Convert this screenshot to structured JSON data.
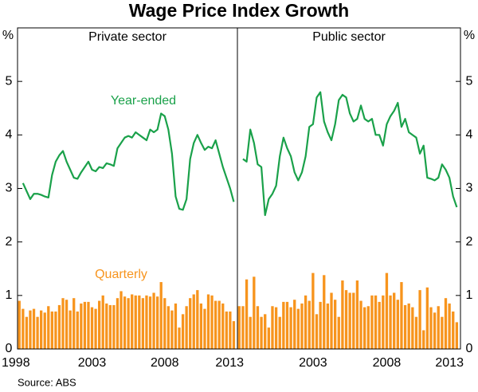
{
  "title": "Wage Price Index Growth",
  "source": "Source: ABS",
  "chart_data": [
    {
      "type": "combo",
      "subtitle": "Private sector",
      "y_unit": "%",
      "x": [
        1998,
        1998.25,
        1998.5,
        1998.75,
        1999,
        1999.25,
        1999.5,
        1999.75,
        2000,
        2000.25,
        2000.5,
        2000.75,
        2001,
        2001.25,
        2001.5,
        2001.75,
        2002,
        2002.25,
        2002.5,
        2002.75,
        2003,
        2003.25,
        2003.5,
        2003.75,
        2004,
        2004.25,
        2004.5,
        2004.75,
        2005,
        2005.25,
        2005.5,
        2005.75,
        2006,
        2006.25,
        2006.5,
        2006.75,
        2007,
        2007.25,
        2007.5,
        2007.75,
        2008,
        2008.25,
        2008.5,
        2008.75,
        2009,
        2009.25,
        2009.5,
        2009.75,
        2010,
        2010.25,
        2010.5,
        2010.75,
        2011,
        2011.25,
        2011.5,
        2011.75,
        2012,
        2012.25,
        2012.5,
        2012.75
      ],
      "xlim": [
        1997.875,
        2013
      ],
      "xticks": [
        1998,
        2003,
        2008,
        2013
      ],
      "ylim": [
        0,
        6
      ],
      "yticks": [
        0,
        1,
        2,
        3,
        4,
        5
      ],
      "series": [
        {
          "name": "Year-ended",
          "type": "line",
          "color": "#1aa14a",
          "values": [
            null,
            3.1,
            2.95,
            2.8,
            2.9,
            2.9,
            2.88,
            2.85,
            2.83,
            3.25,
            3.5,
            3.62,
            3.7,
            3.5,
            3.35,
            3.2,
            3.18,
            3.3,
            3.4,
            3.5,
            3.35,
            3.32,
            3.4,
            3.38,
            3.47,
            3.45,
            3.42,
            3.75,
            3.85,
            3.95,
            3.98,
            3.95,
            4.05,
            4.0,
            3.95,
            3.9,
            4.1,
            4.05,
            4.1,
            4.4,
            4.35,
            4.1,
            3.65,
            2.85,
            2.62,
            2.6,
            2.8,
            3.55,
            3.85,
            4.0,
            3.85,
            3.72,
            3.78,
            3.75,
            3.9,
            3.65,
            3.4,
            3.2,
            3.0,
            2.75
          ]
        },
        {
          "name": "Quarterly",
          "type": "bar",
          "color": "#f7941d",
          "values": [
            0.9,
            0.75,
            0.6,
            0.72,
            0.75,
            0.6,
            0.72,
            0.68,
            0.8,
            0.7,
            0.7,
            0.82,
            0.95,
            0.92,
            0.72,
            0.95,
            0.7,
            0.85,
            0.88,
            0.88,
            0.78,
            0.75,
            0.9,
            1.0,
            0.85,
            0.82,
            0.82,
            0.95,
            1.08,
            0.98,
            0.95,
            1.02,
            1.0,
            1.0,
            0.95,
            1.0,
            0.98,
            1.05,
            0.98,
            1.25,
            0.95,
            0.8,
            0.72,
            0.85,
            0.4,
            0.65,
            0.8,
            0.95,
            1.02,
            1.1,
            0.85,
            0.75,
            1.02,
            1.0,
            0.9,
            0.9,
            0.85,
            0.7,
            0.7,
            0.52
          ]
        }
      ]
    },
    {
      "type": "combo",
      "subtitle": "Public sector",
      "y_unit": "%",
      "x": [
        1998,
        1998.25,
        1998.5,
        1998.75,
        1999,
        1999.25,
        1999.5,
        1999.75,
        2000,
        2000.25,
        2000.5,
        2000.75,
        2001,
        2001.25,
        2001.5,
        2001.75,
        2002,
        2002.25,
        2002.5,
        2002.75,
        2003,
        2003.25,
        2003.5,
        2003.75,
        2004,
        2004.25,
        2004.5,
        2004.75,
        2005,
        2005.25,
        2005.5,
        2005.75,
        2006,
        2006.25,
        2006.5,
        2006.75,
        2007,
        2007.25,
        2007.5,
        2007.75,
        2008,
        2008.25,
        2008.5,
        2008.75,
        2009,
        2009.25,
        2009.5,
        2009.75,
        2010,
        2010.25,
        2010.5,
        2010.75,
        2011,
        2011.25,
        2011.5,
        2011.75,
        2012,
        2012.25,
        2012.5,
        2012.75
      ],
      "xlim": [
        1997.875,
        2013
      ],
      "xticks": [
        2003,
        2008,
        2013
      ],
      "ylim": [
        0,
        6
      ],
      "yticks": [
        0,
        1,
        2,
        3,
        4,
        5
      ],
      "series": [
        {
          "type": "line",
          "color": "#1aa14a",
          "values": [
            null,
            3.55,
            3.5,
            4.1,
            3.85,
            3.45,
            3.4,
            2.5,
            2.8,
            2.9,
            3.05,
            3.6,
            3.95,
            3.75,
            3.6,
            3.3,
            3.15,
            3.3,
            3.6,
            4.15,
            4.2,
            4.7,
            4.8,
            4.25,
            4.05,
            3.9,
            4.2,
            4.65,
            4.75,
            4.7,
            4.4,
            4.25,
            4.3,
            4.55,
            4.3,
            4.25,
            4.3,
            4.0,
            4.0,
            3.8,
            4.2,
            4.35,
            4.45,
            4.6,
            4.15,
            4.3,
            4.05,
            4.0,
            3.95,
            3.65,
            3.8,
            3.2,
            3.18,
            3.15,
            3.2,
            3.45,
            3.35,
            3.2,
            2.85,
            2.65
          ]
        },
        {
          "type": "bar",
          "color": "#f7941d",
          "values": [
            0.8,
            0.8,
            1.3,
            0.6,
            1.35,
            0.8,
            0.6,
            0.65,
            0.4,
            0.8,
            0.78,
            0.6,
            0.88,
            0.88,
            0.78,
            0.92,
            0.75,
            0.85,
            1.0,
            0.9,
            1.42,
            0.65,
            0.88,
            1.38,
            0.85,
            1.05,
            0.92,
            0.6,
            1.28,
            1.1,
            1.05,
            1.05,
            1.28,
            0.9,
            0.78,
            0.8,
            1.0,
            1.0,
            0.88,
            1.0,
            1.42,
            1.0,
            1.05,
            0.92,
            1.25,
            0.82,
            0.85,
            0.78,
            0.6,
            1.1,
            0.35,
            1.15,
            0.78,
            0.68,
            0.8,
            0.6,
            0.95,
            0.85,
            0.7,
            0.5
          ]
        }
      ]
    }
  ]
}
